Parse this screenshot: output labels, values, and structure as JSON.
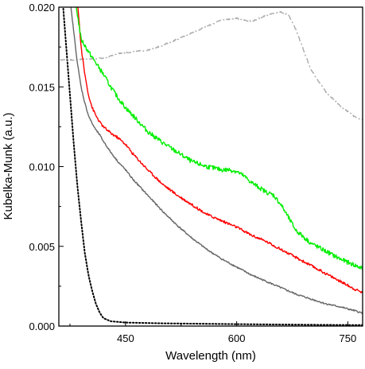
{
  "chart_data": {
    "type": "line",
    "xlabel": "Wavelength (nm)",
    "ylabel": "Kubelka-Munk (a.u.)",
    "xlim": [
      360,
      770
    ],
    "ylim": [
      0.0,
      0.02
    ],
    "x_ticks": [
      {
        "value": 450,
        "label": "450"
      },
      {
        "value": 600,
        "label": "600"
      },
      {
        "value": 750,
        "label": "750"
      }
    ],
    "y_ticks": [
      {
        "value": 0.0,
        "label": "0.000"
      },
      {
        "value": 0.005,
        "label": "0.005"
      },
      {
        "value": 0.01,
        "label": "0.010"
      },
      {
        "value": 0.015,
        "label": "0.015"
      },
      {
        "value": 0.02,
        "label": "0.020"
      }
    ],
    "grid": false,
    "legend": "none",
    "series": [
      {
        "color": "#000000",
        "style": "dotted",
        "noise": 0,
        "x": [
          365,
          370,
          375,
          380,
          385,
          390,
          395,
          400,
          405,
          410,
          415,
          420,
          430,
          450,
          500,
          600,
          700,
          770
        ],
        "y": [
          0.0205,
          0.0175,
          0.0145,
          0.0115,
          0.0088,
          0.0066,
          0.0046,
          0.0032,
          0.0022,
          0.0014,
          0.00085,
          0.0005,
          0.0003,
          0.00022,
          0.00017,
          0.00012,
          8e-05,
          6e-05
        ]
      },
      {
        "color": "#aaaaaa",
        "style": "dashdot",
        "noise": 4e-05,
        "x": [
          362,
          380,
          400,
          420,
          440,
          460,
          480,
          500,
          520,
          540,
          560,
          580,
          600,
          620,
          640,
          660,
          670,
          680,
          700,
          720,
          740,
          760,
          770
        ],
        "y": [
          0.0167,
          0.0167,
          0.01675,
          0.0168,
          0.0171,
          0.0172,
          0.0173,
          0.0176,
          0.018,
          0.0184,
          0.0188,
          0.0192,
          0.0193,
          0.0191,
          0.0195,
          0.0197,
          0.0195,
          0.0186,
          0.0161,
          0.0147,
          0.0138,
          0.0131,
          0.0129
        ]
      },
      {
        "color": "#666666",
        "style": "solid",
        "noise": 5e-05,
        "x": [
          375,
          380,
          385,
          390,
          395,
          400,
          405,
          410,
          415,
          420,
          430,
          440,
          450,
          460,
          480,
          500,
          520,
          540,
          560,
          580,
          600,
          620,
          640,
          660,
          680,
          700,
          720,
          740,
          760,
          770
        ],
        "y": [
          0.0205,
          0.0185,
          0.0165,
          0.015,
          0.014,
          0.0132,
          0.0127,
          0.0123,
          0.012,
          0.0116,
          0.0109,
          0.0103,
          0.0098,
          0.0092,
          0.0082,
          0.0072,
          0.0063,
          0.0055,
          0.0048,
          0.0042,
          0.0037,
          0.0032,
          0.0028,
          0.0024,
          0.002,
          0.0017,
          0.0014,
          0.0012,
          0.00095,
          0.0008
        ]
      },
      {
        "color": "#ff0000",
        "style": "solid",
        "noise": 8e-05,
        "x": [
          385,
          390,
          395,
          400,
          405,
          410,
          415,
          420,
          430,
          440,
          450,
          460,
          480,
          500,
          520,
          540,
          560,
          580,
          600,
          620,
          640,
          660,
          680,
          700,
          720,
          740,
          760,
          770
        ],
        "y": [
          0.0205,
          0.0175,
          0.0158,
          0.0145,
          0.0137,
          0.0132,
          0.0128,
          0.0125,
          0.0121,
          0.0118,
          0.0114,
          0.0108,
          0.0098,
          0.0089,
          0.0082,
          0.0076,
          0.007,
          0.0066,
          0.0062,
          0.0057,
          0.0053,
          0.0048,
          0.0043,
          0.0038,
          0.0033,
          0.0028,
          0.0023,
          0.0021
        ]
      },
      {
        "color": "#00ee00",
        "style": "solid",
        "noise": 0.00014,
        "x": [
          382,
          390,
          400,
          410,
          420,
          430,
          440,
          450,
          460,
          470,
          480,
          500,
          520,
          540,
          560,
          580,
          590,
          600,
          610,
          620,
          630,
          640,
          650,
          660,
          670,
          680,
          700,
          720,
          740,
          760,
          770
        ],
        "y": [
          0.0205,
          0.018,
          0.0172,
          0.0165,
          0.0158,
          0.015,
          0.0143,
          0.0137,
          0.0132,
          0.0127,
          0.0122,
          0.0115,
          0.0109,
          0.0103,
          0.01,
          0.0098,
          0.0098,
          0.0097,
          0.0094,
          0.009,
          0.0087,
          0.0084,
          0.0082,
          0.0076,
          0.0068,
          0.006,
          0.0052,
          0.0047,
          0.0042,
          0.0038,
          0.0036
        ]
      }
    ]
  }
}
